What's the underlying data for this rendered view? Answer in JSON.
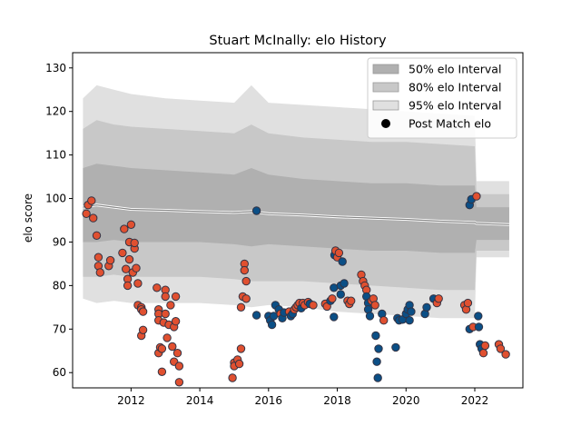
{
  "chart_data": {
    "type": "scatter",
    "title": "Stuart McInally: elo History",
    "xlabel": "",
    "ylabel": "elo score",
    "xlim": [
      2010.3,
      2023.4
    ],
    "ylim": [
      56.5,
      133.5
    ],
    "xticks": [
      2012,
      2014,
      2016,
      2018,
      2020,
      2022
    ],
    "yticks": [
      60,
      70,
      80,
      90,
      100,
      110,
      120,
      130
    ],
    "grid": false,
    "legend": {
      "placement": "top-right",
      "entries": [
        "50% elo Interval",
        "80% elo Interval",
        "95% elo Interval",
        "Post Match elo"
      ]
    },
    "colors": {
      "band50": "#b0b0b0",
      "band80": "#c8c8c8",
      "band95": "#e0e0e0",
      "mean_line": "#888888",
      "point_red": "#e05030",
      "point_blue": "#0b4f86",
      "point_edge": "#333344"
    },
    "bands": {
      "x": [
        2010.6,
        2011.0,
        2011.5,
        2012.0,
        2013.0,
        2014.0,
        2015.0,
        2015.5,
        2016.0,
        2017.0,
        2018.0,
        2019.0,
        2020.0,
        2021.0,
        2022.0,
        2022.05,
        2023.0
      ],
      "p95_hi": [
        123,
        126,
        125,
        124,
        123,
        122.5,
        122,
        126,
        122,
        121.5,
        121,
        120.5,
        120,
        119.5,
        119,
        104,
        104
      ],
      "p95_lo": [
        77,
        76,
        76.5,
        76,
        76,
        76,
        75.5,
        75,
        75.5,
        75,
        74,
        73.5,
        73,
        72.5,
        72.5,
        86.5,
        86.5
      ],
      "p80_hi": [
        116,
        118,
        117,
        116.5,
        116,
        115.5,
        115,
        117,
        115,
        114,
        113.5,
        113,
        113,
        112.5,
        112,
        101,
        101
      ],
      "p80_lo": [
        82,
        82,
        82.5,
        82,
        82,
        82,
        81.5,
        81,
        81,
        81,
        80.5,
        80,
        79.5,
        79,
        79,
        88,
        88
      ],
      "p50_hi": [
        107,
        108,
        107.5,
        107,
        106.5,
        106,
        105.5,
        107,
        105.5,
        104.5,
        104,
        103.5,
        103.5,
        103,
        103,
        98,
        98
      ],
      "p50_lo": [
        90,
        90,
        90.5,
        90,
        90,
        90,
        89.5,
        89,
        89.5,
        89,
        88.5,
        88,
        88,
        87.5,
        87.5,
        90.5,
        90.5
      ],
      "mean": [
        98,
        98.5,
        98,
        97.5,
        97.3,
        97,
        96.8,
        97,
        96.5,
        96.2,
        95.8,
        95.5,
        95.2,
        94.8,
        94.5,
        94.3,
        94
      ]
    },
    "series": [
      {
        "name": "Post Match elo",
        "points": [
          {
            "x": 2010.7,
            "y": 96.5,
            "c": "red"
          },
          {
            "x": 2010.75,
            "y": 98.5,
            "c": "red"
          },
          {
            "x": 2010.85,
            "y": 99.5,
            "c": "red"
          },
          {
            "x": 2010.9,
            "y": 95.5,
            "c": "red"
          },
          {
            "x": 2011.0,
            "y": 91.5,
            "c": "red"
          },
          {
            "x": 2011.05,
            "y": 86.5,
            "c": "red"
          },
          {
            "x": 2011.05,
            "y": 84.5,
            "c": "red"
          },
          {
            "x": 2011.1,
            "y": 83.0,
            "c": "red"
          },
          {
            "x": 2011.35,
            "y": 84.5,
            "c": "red"
          },
          {
            "x": 2011.4,
            "y": 85.8,
            "c": "red"
          },
          {
            "x": 2011.75,
            "y": 87.5,
            "c": "red"
          },
          {
            "x": 2011.8,
            "y": 93.0,
            "c": "red"
          },
          {
            "x": 2011.85,
            "y": 83.8,
            "c": "red"
          },
          {
            "x": 2011.9,
            "y": 81.5,
            "c": "red"
          },
          {
            "x": 2011.9,
            "y": 80.0,
            "c": "red"
          },
          {
            "x": 2011.95,
            "y": 86.0,
            "c": "red"
          },
          {
            "x": 2011.95,
            "y": 90.0,
            "c": "red"
          },
          {
            "x": 2012.0,
            "y": 94.0,
            "c": "red"
          },
          {
            "x": 2012.05,
            "y": 83.0,
            "c": "red"
          },
          {
            "x": 2012.1,
            "y": 88.5,
            "c": "red"
          },
          {
            "x": 2012.1,
            "y": 89.8,
            "c": "red"
          },
          {
            "x": 2012.15,
            "y": 84.0,
            "c": "red"
          },
          {
            "x": 2012.2,
            "y": 80.5,
            "c": "red"
          },
          {
            "x": 2012.2,
            "y": 75.5,
            "c": "red"
          },
          {
            "x": 2012.3,
            "y": 75.0,
            "c": "red"
          },
          {
            "x": 2012.3,
            "y": 74.5,
            "c": "red"
          },
          {
            "x": 2012.3,
            "y": 68.5,
            "c": "red"
          },
          {
            "x": 2012.35,
            "y": 69.8,
            "c": "red"
          },
          {
            "x": 2012.35,
            "y": 74.0,
            "c": "red"
          },
          {
            "x": 2012.75,
            "y": 79.5,
            "c": "red"
          },
          {
            "x": 2012.8,
            "y": 74.5,
            "c": "red"
          },
          {
            "x": 2012.8,
            "y": 73.5,
            "c": "red"
          },
          {
            "x": 2012.8,
            "y": 72.0,
            "c": "red"
          },
          {
            "x": 2012.8,
            "y": 64.5,
            "c": "red"
          },
          {
            "x": 2012.85,
            "y": 65.8,
            "c": "red"
          },
          {
            "x": 2012.9,
            "y": 65.5,
            "c": "red"
          },
          {
            "x": 2012.9,
            "y": 60.2,
            "c": "red"
          },
          {
            "x": 2012.95,
            "y": 71.5,
            "c": "red"
          },
          {
            "x": 2013.0,
            "y": 79.0,
            "c": "red"
          },
          {
            "x": 2013.0,
            "y": 77.5,
            "c": "red"
          },
          {
            "x": 2013.0,
            "y": 73.5,
            "c": "red"
          },
          {
            "x": 2013.05,
            "y": 68.0,
            "c": "red"
          },
          {
            "x": 2013.1,
            "y": 71.0,
            "c": "red"
          },
          {
            "x": 2013.15,
            "y": 75.5,
            "c": "red"
          },
          {
            "x": 2013.2,
            "y": 66.0,
            "c": "red"
          },
          {
            "x": 2013.25,
            "y": 62.5,
            "c": "red"
          },
          {
            "x": 2013.25,
            "y": 70.5,
            "c": "red"
          },
          {
            "x": 2013.3,
            "y": 77.5,
            "c": "red"
          },
          {
            "x": 2013.3,
            "y": 71.8,
            "c": "red"
          },
          {
            "x": 2013.35,
            "y": 64.5,
            "c": "red"
          },
          {
            "x": 2013.4,
            "y": 61.5,
            "c": "red"
          },
          {
            "x": 2013.4,
            "y": 57.8,
            "c": "red"
          },
          {
            "x": 2014.95,
            "y": 58.8,
            "c": "red"
          },
          {
            "x": 2015.0,
            "y": 62.3,
            "c": "red"
          },
          {
            "x": 2015.0,
            "y": 61.5,
            "c": "red"
          },
          {
            "x": 2015.1,
            "y": 63.0,
            "c": "red"
          },
          {
            "x": 2015.15,
            "y": 62.0,
            "c": "red"
          },
          {
            "x": 2015.2,
            "y": 65.5,
            "c": "red"
          },
          {
            "x": 2015.2,
            "y": 75.0,
            "c": "red"
          },
          {
            "x": 2015.25,
            "y": 77.5,
            "c": "red"
          },
          {
            "x": 2015.3,
            "y": 85.0,
            "c": "red"
          },
          {
            "x": 2015.3,
            "y": 83.5,
            "c": "red"
          },
          {
            "x": 2015.35,
            "y": 81.0,
            "c": "red"
          },
          {
            "x": 2015.35,
            "y": 77.0,
            "c": "red"
          },
          {
            "x": 2015.65,
            "y": 73.2,
            "c": "blue"
          },
          {
            "x": 2015.65,
            "y": 97.2,
            "c": "blue"
          },
          {
            "x": 2016.0,
            "y": 73.0,
            "c": "blue"
          },
          {
            "x": 2016.05,
            "y": 72.0,
            "c": "blue"
          },
          {
            "x": 2016.1,
            "y": 71.0,
            "c": "blue"
          },
          {
            "x": 2016.15,
            "y": 73.0,
            "c": "blue"
          },
          {
            "x": 2016.2,
            "y": 75.5,
            "c": "blue"
          },
          {
            "x": 2016.3,
            "y": 74.5,
            "c": "blue"
          },
          {
            "x": 2016.35,
            "y": 73.5,
            "c": "red"
          },
          {
            "x": 2016.4,
            "y": 72.5,
            "c": "blue"
          },
          {
            "x": 2016.45,
            "y": 73.8,
            "c": "blue"
          },
          {
            "x": 2016.6,
            "y": 74.0,
            "c": "red"
          },
          {
            "x": 2016.65,
            "y": 73.0,
            "c": "blue"
          },
          {
            "x": 2016.7,
            "y": 73.5,
            "c": "blue"
          },
          {
            "x": 2016.75,
            "y": 74.5,
            "c": "red"
          },
          {
            "x": 2016.8,
            "y": 75.0,
            "c": "red"
          },
          {
            "x": 2016.85,
            "y": 75.5,
            "c": "red"
          },
          {
            "x": 2016.9,
            "y": 76.0,
            "c": "red"
          },
          {
            "x": 2016.95,
            "y": 74.8,
            "c": "blue"
          },
          {
            "x": 2017.0,
            "y": 76.0,
            "c": "red"
          },
          {
            "x": 2017.05,
            "y": 75.5,
            "c": "red"
          },
          {
            "x": 2017.15,
            "y": 76.2,
            "c": "red"
          },
          {
            "x": 2017.2,
            "y": 75.8,
            "c": "blue"
          },
          {
            "x": 2017.3,
            "y": 75.5,
            "c": "red"
          },
          {
            "x": 2017.65,
            "y": 75.8,
            "c": "red"
          },
          {
            "x": 2017.7,
            "y": 75.2,
            "c": "red"
          },
          {
            "x": 2017.8,
            "y": 76.5,
            "c": "blue"
          },
          {
            "x": 2017.85,
            "y": 77.0,
            "c": "red"
          },
          {
            "x": 2017.9,
            "y": 72.8,
            "c": "blue"
          },
          {
            "x": 2017.9,
            "y": 79.5,
            "c": "blue"
          },
          {
            "x": 2017.92,
            "y": 87.0,
            "c": "blue"
          },
          {
            "x": 2017.95,
            "y": 88.0,
            "c": "red"
          },
          {
            "x": 2018.0,
            "y": 86.5,
            "c": "red"
          },
          {
            "x": 2018.05,
            "y": 87.5,
            "c": "red"
          },
          {
            "x": 2018.1,
            "y": 80.0,
            "c": "blue"
          },
          {
            "x": 2018.1,
            "y": 78.0,
            "c": "blue"
          },
          {
            "x": 2018.15,
            "y": 85.5,
            "c": "blue"
          },
          {
            "x": 2018.2,
            "y": 80.5,
            "c": "blue"
          },
          {
            "x": 2018.3,
            "y": 76.5,
            "c": "red"
          },
          {
            "x": 2018.35,
            "y": 75.8,
            "c": "red"
          },
          {
            "x": 2018.4,
            "y": 76.5,
            "c": "red"
          },
          {
            "x": 2018.7,
            "y": 82.5,
            "c": "red"
          },
          {
            "x": 2018.75,
            "y": 81.0,
            "c": "red"
          },
          {
            "x": 2018.8,
            "y": 80.0,
            "c": "red"
          },
          {
            "x": 2018.85,
            "y": 79.0,
            "c": "red"
          },
          {
            "x": 2018.85,
            "y": 77.5,
            "c": "blue"
          },
          {
            "x": 2018.9,
            "y": 76.0,
            "c": "blue"
          },
          {
            "x": 2018.9,
            "y": 74.5,
            "c": "blue"
          },
          {
            "x": 2018.95,
            "y": 73.0,
            "c": "blue"
          },
          {
            "x": 2019.0,
            "y": 76.5,
            "c": "red"
          },
          {
            "x": 2019.05,
            "y": 77.0,
            "c": "red"
          },
          {
            "x": 2019.1,
            "y": 75.5,
            "c": "red"
          },
          {
            "x": 2019.12,
            "y": 68.5,
            "c": "blue"
          },
          {
            "x": 2019.15,
            "y": 62.5,
            "c": "blue"
          },
          {
            "x": 2019.18,
            "y": 58.8,
            "c": "blue"
          },
          {
            "x": 2019.2,
            "y": 65.5,
            "c": "blue"
          },
          {
            "x": 2019.3,
            "y": 73.5,
            "c": "blue"
          },
          {
            "x": 2019.35,
            "y": 72.0,
            "c": "red"
          },
          {
            "x": 2019.7,
            "y": 65.8,
            "c": "blue"
          },
          {
            "x": 2019.75,
            "y": 72.5,
            "c": "blue"
          },
          {
            "x": 2019.8,
            "y": 72.0,
            "c": "blue"
          },
          {
            "x": 2019.9,
            "y": 72.2,
            "c": "blue"
          },
          {
            "x": 2020.0,
            "y": 73.5,
            "c": "blue"
          },
          {
            "x": 2020.05,
            "y": 74.5,
            "c": "blue"
          },
          {
            "x": 2020.1,
            "y": 72.0,
            "c": "blue"
          },
          {
            "x": 2020.1,
            "y": 75.5,
            "c": "blue"
          },
          {
            "x": 2020.15,
            "y": 74.0,
            "c": "blue"
          },
          {
            "x": 2020.55,
            "y": 73.5,
            "c": "blue"
          },
          {
            "x": 2020.6,
            "y": 75.0,
            "c": "blue"
          },
          {
            "x": 2020.8,
            "y": 77.0,
            "c": "blue"
          },
          {
            "x": 2020.9,
            "y": 76.0,
            "c": "red"
          },
          {
            "x": 2020.95,
            "y": 77.0,
            "c": "red"
          },
          {
            "x": 2021.7,
            "y": 75.5,
            "c": "red"
          },
          {
            "x": 2021.75,
            "y": 74.5,
            "c": "red"
          },
          {
            "x": 2021.8,
            "y": 76.0,
            "c": "red"
          },
          {
            "x": 2021.85,
            "y": 70.0,
            "c": "blue"
          },
          {
            "x": 2021.85,
            "y": 98.5,
            "c": "blue"
          },
          {
            "x": 2021.9,
            "y": 99.8,
            "c": "blue"
          },
          {
            "x": 2021.95,
            "y": 70.5,
            "c": "red"
          },
          {
            "x": 2022.05,
            "y": 100.5,
            "c": "red"
          },
          {
            "x": 2022.1,
            "y": 73.0,
            "c": "blue"
          },
          {
            "x": 2022.12,
            "y": 70.5,
            "c": "blue"
          },
          {
            "x": 2022.15,
            "y": 66.5,
            "c": "blue"
          },
          {
            "x": 2022.2,
            "y": 65.5,
            "c": "blue"
          },
          {
            "x": 2022.25,
            "y": 64.5,
            "c": "red"
          },
          {
            "x": 2022.3,
            "y": 66.2,
            "c": "red"
          },
          {
            "x": 2022.7,
            "y": 66.5,
            "c": "red"
          },
          {
            "x": 2022.75,
            "y": 65.5,
            "c": "red"
          },
          {
            "x": 2022.9,
            "y": 64.2,
            "c": "red"
          }
        ]
      }
    ]
  }
}
